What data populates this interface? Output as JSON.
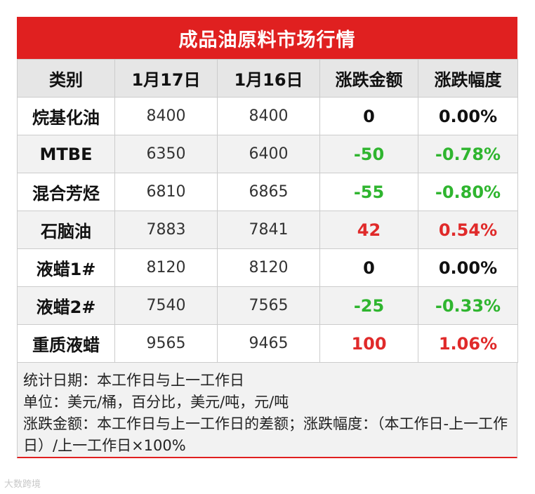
{
  "title": "成品油原料市场行情",
  "headers": [
    "类别",
    "1月17日",
    "1月16日",
    "涨跌金额",
    "涨跌幅度"
  ],
  "rows": [
    {
      "name": "烷基化油",
      "d1": "8400",
      "d2": "8400",
      "chg": "0",
      "pct": "0.00%",
      "dir": "flat"
    },
    {
      "name": "MTBE",
      "d1": "6350",
      "d2": "6400",
      "chg": "-50",
      "pct": "-0.78%",
      "dir": "down"
    },
    {
      "name": "混合芳烃",
      "d1": "6810",
      "d2": "6865",
      "chg": "-55",
      "pct": "-0.80%",
      "dir": "down"
    },
    {
      "name": "石脑油",
      "d1": "7883",
      "d2": "7841",
      "chg": "42",
      "pct": "0.54%",
      "dir": "up"
    },
    {
      "name": "液蜡1#",
      "d1": "8120",
      "d2": "8120",
      "chg": "0",
      "pct": "0.00%",
      "dir": "flat"
    },
    {
      "name": "液蜡2#",
      "d1": "7540",
      "d2": "7565",
      "chg": "-25",
      "pct": "-0.33%",
      "dir": "down"
    },
    {
      "name": "重质液蜡",
      "d1": "9565",
      "d2": "9465",
      "chg": "100",
      "pct": "1.06%",
      "dir": "up"
    }
  ],
  "notes": [
    "统计日期：本工作日与上一工作日",
    "单位：美元/桶，百分比，美元/吨，元/吨",
    "涨跌金额：本工作日与上一工作日的差额；涨跌幅度：（本工作日-上一工作日）/上一工作日×100%"
  ],
  "watermark": "大数跨境",
  "colors": {
    "up": "#e02a2a",
    "down": "#2fb52f",
    "flat": "#111111",
    "accent": "#e02020"
  }
}
